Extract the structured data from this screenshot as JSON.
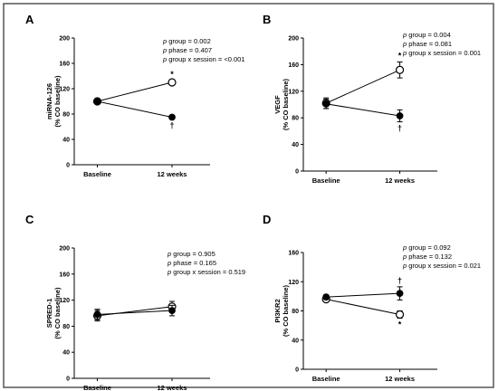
{
  "chart_data": [
    {
      "type": "line",
      "panel": "A",
      "ylabel": [
        "miRNA-126",
        "(% CO baseline)"
      ],
      "ylim": [
        0,
        200
      ],
      "yticks": [
        0,
        40,
        80,
        120,
        160,
        200
      ],
      "categories": [
        "Baseline",
        "12 weeks"
      ],
      "series": [
        {
          "marker": "open-circle",
          "values": [
            100,
            130
          ],
          "errors": [
            2,
            3
          ],
          "annotation": "*"
        },
        {
          "marker": "filled-circle",
          "values": [
            100,
            75
          ],
          "errors": [
            2,
            3
          ],
          "annotation": "†"
        }
      ],
      "stats": [
        {
          "p": "p",
          "text": " group = 0.002"
        },
        {
          "p": "p",
          "text": " phase = 0.407"
        },
        {
          "p": "p",
          "text": " group x session = <0.001"
        }
      ]
    },
    {
      "type": "line",
      "panel": "B",
      "ylabel": [
        "VEGF",
        "(% CO baseline)"
      ],
      "ylim": [
        0,
        200
      ],
      "yticks": [
        0,
        40,
        80,
        120,
        160,
        200
      ],
      "categories": [
        "Baseline",
        "12 weeks"
      ],
      "series": [
        {
          "marker": "open-circle",
          "values": [
            102,
            152
          ],
          "errors": [
            8,
            12
          ],
          "annotation": "*"
        },
        {
          "marker": "filled-circle",
          "values": [
            101,
            83
          ],
          "errors": [
            7,
            9
          ],
          "annotation": "†"
        }
      ],
      "stats": [
        {
          "p": "p",
          "text": " group = 0.004"
        },
        {
          "p": "p",
          "text": " phase = 0.081"
        },
        {
          "p": "p",
          "text": " group x session = 0.001"
        }
      ]
    },
    {
      "type": "line",
      "panel": "C",
      "ylabel": [
        "SPRED-1",
        "(% CO baseline)"
      ],
      "ylim": [
        0,
        200
      ],
      "yticks": [
        0,
        40,
        80,
        120,
        160,
        200
      ],
      "categories": [
        "Baseline",
        "12 weeks"
      ],
      "series": [
        {
          "marker": "open-circle",
          "values": [
            96,
            110
          ],
          "errors": [
            8,
            8
          ],
          "annotation": ""
        },
        {
          "marker": "filled-circle",
          "values": [
            98,
            104
          ],
          "errors": [
            8,
            8
          ],
          "annotation": ""
        }
      ],
      "stats": [
        {
          "p": "p",
          "text": " group = 0.905"
        },
        {
          "p": "p",
          "text": " phase = 0.165"
        },
        {
          "p": "p",
          "text": " group x session = 0.519"
        }
      ]
    },
    {
      "type": "line",
      "panel": "D",
      "ylabel": [
        "PI3KR2",
        "(% CO baseline)"
      ],
      "ylim": [
        0,
        160
      ],
      "yticks": [
        0,
        40,
        80,
        120,
        160
      ],
      "categories": [
        "Baseline",
        "12 weeks"
      ],
      "series": [
        {
          "marker": "open-circle",
          "values": [
            96,
            75
          ],
          "errors": [
            3,
            5
          ],
          "annotation": "*"
        },
        {
          "marker": "filled-circle",
          "values": [
            99,
            104
          ],
          "errors": [
            3,
            9
          ],
          "annotation": "†"
        }
      ],
      "stats": [
        {
          "p": "p",
          "text": " group = 0.092"
        },
        {
          "p": "p",
          "text": " phase = 0.132"
        },
        {
          "p": "p",
          "text": " group x session = 0.021"
        }
      ]
    }
  ]
}
